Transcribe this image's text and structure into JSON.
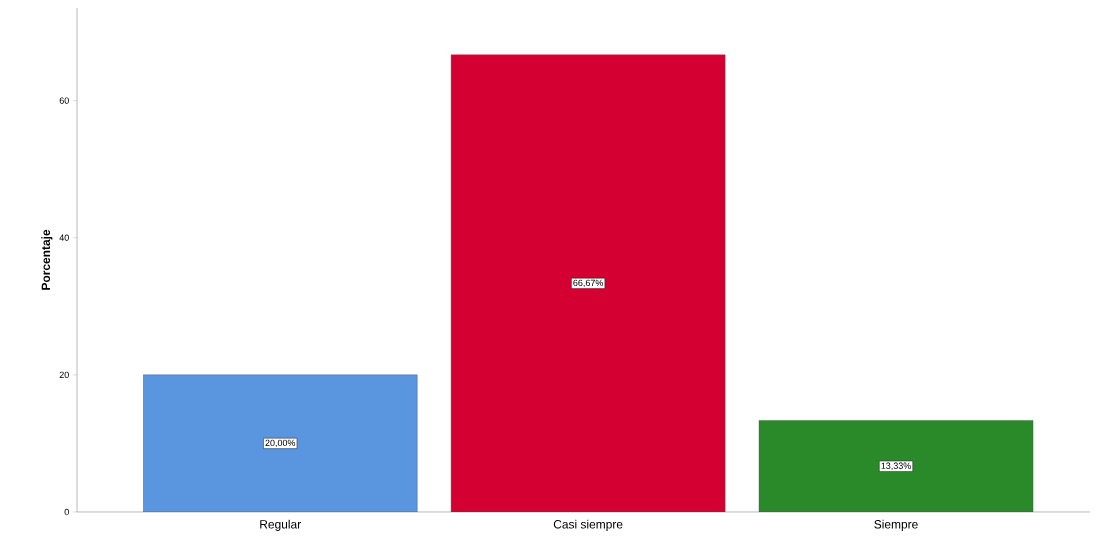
{
  "chart_data": {
    "type": "bar",
    "ylabel": "Porcentaje",
    "categories": [
      "Regular",
      "Casi siempre",
      "Siempre"
    ],
    "values": [
      20.0,
      66.67,
      13.33
    ],
    "value_labels": [
      "20,00%",
      "66,67%",
      "13,33%"
    ],
    "colors": [
      "#5a96e0",
      "#d50032",
      "#2a8a2a"
    ],
    "ylim": [
      0,
      73.5
    ],
    "yticks": [
      0,
      20,
      40,
      60
    ]
  }
}
